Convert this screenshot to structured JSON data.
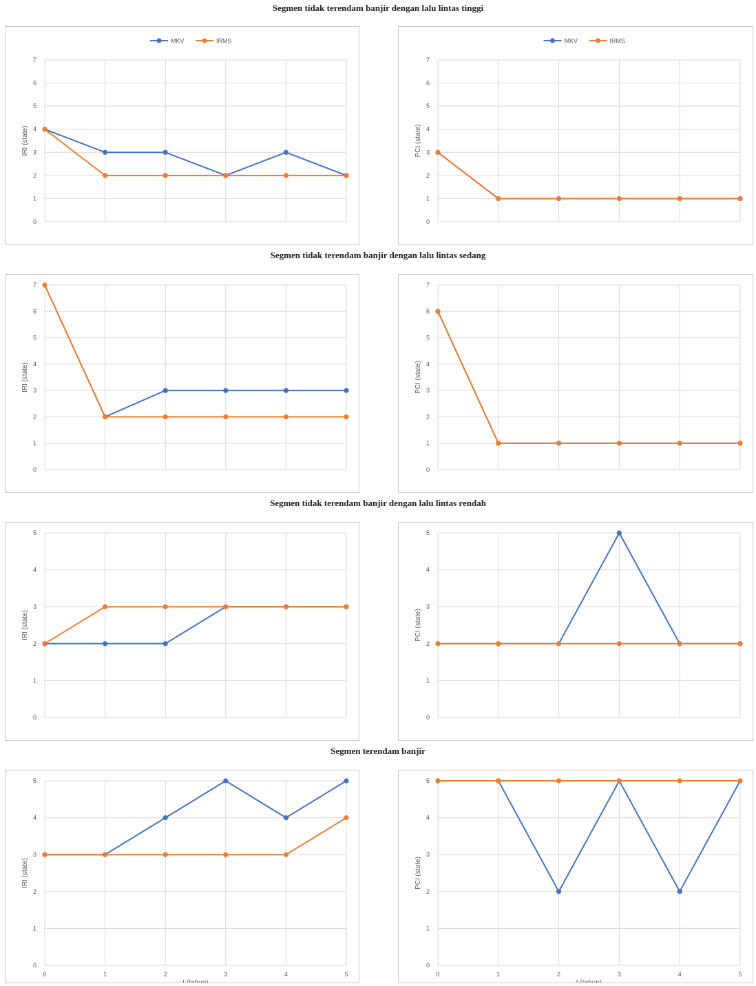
{
  "colors": {
    "mkv": "#4472C4",
    "irms": "#ED7D31",
    "grid": "#d9d9d9",
    "axis_text": "#595959"
  },
  "legend": {
    "mkv": "MKV",
    "irms": "IRMS"
  },
  "sections": [
    {
      "title": "Segmen tidak terendam banjir dengan lalu lintas tinggi",
      "charts": [
        {
          "type": "line",
          "ylabel": "IRI (state)",
          "xlabel": "",
          "show_legend": true,
          "show_x_ticks": false,
          "x": [
            0,
            1,
            2,
            3,
            4,
            5
          ],
          "ylim": [
            0,
            7
          ],
          "series": [
            {
              "name": "MKV",
              "values": [
                4,
                3,
                3,
                2,
                3,
                2
              ]
            },
            {
              "name": "IRMS",
              "values": [
                4,
                2,
                2,
                2,
                2,
                2
              ]
            }
          ]
        },
        {
          "type": "line",
          "ylabel": "PCI (state)",
          "xlabel": "",
          "show_legend": true,
          "show_x_ticks": false,
          "x": [
            0,
            1,
            2,
            3,
            4,
            5
          ],
          "ylim": [
            0,
            7
          ],
          "series": [
            {
              "name": "MKV",
              "values": [
                3,
                1,
                1,
                1,
                1,
                1
              ]
            },
            {
              "name": "IRMS",
              "values": [
                3,
                1,
                1,
                1,
                1,
                1
              ]
            }
          ]
        }
      ]
    },
    {
      "title": "Segmen tidak terendam banjir dengan lalu lintas sedang",
      "charts": [
        {
          "type": "line",
          "ylabel": "IRI (state)",
          "xlabel": "",
          "show_legend": false,
          "show_x_ticks": false,
          "x": [
            0,
            1,
            2,
            3,
            4,
            5
          ],
          "ylim": [
            0,
            7
          ],
          "series": [
            {
              "name": "MKV",
              "values": [
                7,
                2,
                3,
                3,
                3,
                3
              ]
            },
            {
              "name": "IRMS",
              "values": [
                7,
                2,
                2,
                2,
                2,
                2
              ]
            }
          ]
        },
        {
          "type": "line",
          "ylabel": "PCI (state)",
          "xlabel": "",
          "show_legend": false,
          "show_x_ticks": false,
          "x": [
            0,
            1,
            2,
            3,
            4,
            5
          ],
          "ylim": [
            0,
            7
          ],
          "series": [
            {
              "name": "MKV",
              "values": [
                6,
                1,
                1,
                1,
                1,
                1
              ]
            },
            {
              "name": "IRMS",
              "values": [
                6,
                1,
                1,
                1,
                1,
                1
              ]
            }
          ]
        }
      ]
    },
    {
      "title": "Segmen tidak terendam banjir dengan lalu lintas rendah",
      "charts": [
        {
          "type": "line",
          "ylabel": "IRI (state)",
          "xlabel": "",
          "show_legend": false,
          "show_x_ticks": false,
          "x": [
            0,
            1,
            2,
            3,
            4,
            5
          ],
          "ylim": [
            0,
            5
          ],
          "series": [
            {
              "name": "MKV",
              "values": [
                2,
                2,
                2,
                3,
                3,
                3
              ]
            },
            {
              "name": "IRMS",
              "values": [
                2,
                3,
                3,
                3,
                3,
                3
              ]
            }
          ]
        },
        {
          "type": "line",
          "ylabel": "PCI (state)",
          "xlabel": "",
          "show_legend": false,
          "show_x_ticks": false,
          "x": [
            0,
            1,
            2,
            3,
            4,
            5
          ],
          "ylim": [
            0,
            5
          ],
          "series": [
            {
              "name": "MKV",
              "values": [
                2,
                2,
                2,
                5,
                2,
                2
              ]
            },
            {
              "name": "IRMS",
              "values": [
                2,
                2,
                2,
                2,
                2,
                2
              ]
            }
          ]
        }
      ]
    },
    {
      "title": "Segmen terendam banjir",
      "charts": [
        {
          "type": "line",
          "ylabel": "IRI (state)",
          "xlabel": "t (tahun)",
          "show_legend": false,
          "show_x_ticks": true,
          "x": [
            0,
            1,
            2,
            3,
            4,
            5
          ],
          "ylim": [
            0,
            5
          ],
          "series": [
            {
              "name": "MKV",
              "values": [
                3,
                3,
                4,
                5,
                4,
                5
              ]
            },
            {
              "name": "IRMS",
              "values": [
                3,
                3,
                3,
                3,
                3,
                4
              ]
            }
          ]
        },
        {
          "type": "line",
          "ylabel": "PCI (state)",
          "xlabel": "t (tahun)",
          "show_legend": false,
          "show_x_ticks": true,
          "x": [
            0,
            1,
            2,
            3,
            4,
            5
          ],
          "ylim": [
            0,
            5
          ],
          "series": [
            {
              "name": "MKV",
              "values": [
                5,
                5,
                2,
                5,
                2,
                5
              ]
            },
            {
              "name": "IRMS",
              "values": [
                5,
                5,
                5,
                5,
                5,
                5
              ]
            }
          ]
        }
      ]
    }
  ]
}
